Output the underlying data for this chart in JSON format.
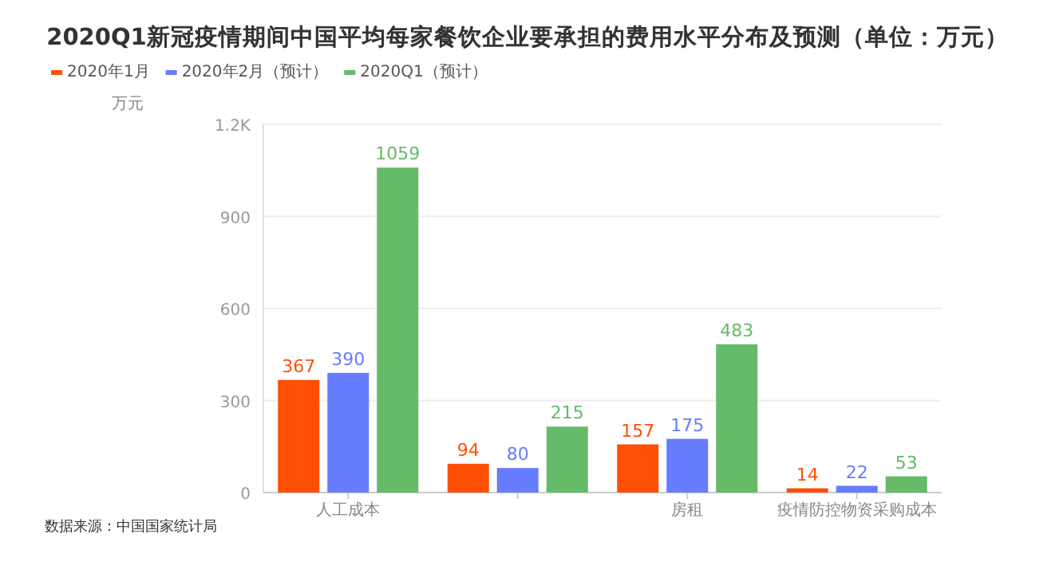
{
  "chart_data": {
    "type": "bar",
    "title": "2020Q1新冠疫情期间中国平均每家餐饮企业要承担的费用水平分布及预测（单位：万元）",
    "ylabel": "万元",
    "categories": [
      "人工成本",
      null,
      "房租",
      "疫情防控物资采购成本"
    ],
    "series": [
      {
        "name": "2020年1月",
        "color": "#fe5005",
        "values": [
          367,
          94,
          157,
          14
        ]
      },
      {
        "name": "2020年2月（预计）",
        "color": "#657dfe",
        "values": [
          390,
          80,
          175,
          22
        ]
      },
      {
        "name": "2020Q1（预计）",
        "color": "#66bb6a",
        "values": [
          1059,
          215,
          483,
          53
        ]
      }
    ],
    "ylim": [
      0,
      1200
    ],
    "yticks": [
      0,
      300,
      600,
      900,
      {
        "value": 1200,
        "label": "1.2K"
      }
    ],
    "grid": "y",
    "legend": "top left",
    "data_labels": true,
    "annotations": [
      "数据来源：中国国家统计局"
    ]
  }
}
